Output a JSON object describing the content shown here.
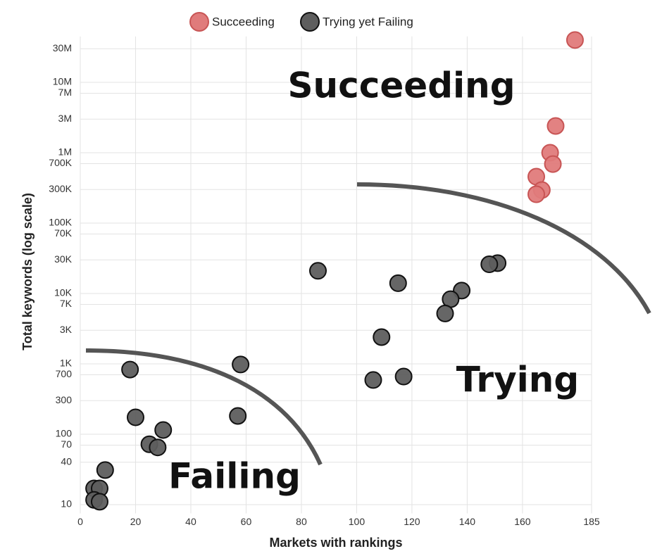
{
  "chart_data": {
    "type": "scatter",
    "x_label": "Markets with rankings",
    "y_label": "Total keywords (log scale)",
    "log_y": true,
    "grid": true,
    "legend": "top",
    "xlim": [
      0,
      185
    ],
    "xticks": [
      0,
      20,
      40,
      60,
      80,
      100,
      120,
      140,
      160,
      185
    ],
    "ylim": [
      7.5,
      45000000
    ],
    "yticks": [
      10,
      40,
      70,
      100,
      300,
      {
        "value": 700,
        "label": "700"
      },
      {
        "value": 1000,
        "label": "1K"
      },
      {
        "value": 3000,
        "label": "3K"
      },
      {
        "value": 7000,
        "label": "7K"
      },
      {
        "value": 10000,
        "label": "10K"
      },
      {
        "value": 30000,
        "label": "30K"
      },
      {
        "value": 70000,
        "label": "70K"
      },
      {
        "value": 100000,
        "label": "100K"
      },
      {
        "value": 300000,
        "label": "300K"
      },
      {
        "value": 700000,
        "label": "700K"
      },
      {
        "value": 1000000,
        "label": "1M"
      },
      {
        "value": 3000000,
        "label": "3M"
      },
      {
        "value": 7000000,
        "label": "7M"
      },
      {
        "value": 10000000,
        "label": "10M"
      },
      {
        "value": 30000000,
        "label": "30M"
      }
    ],
    "series": [
      {
        "name": "Succeeding",
        "color": "#e07b7b",
        "stroke": "#c85555",
        "x": [
          179,
          172,
          170,
          171,
          165,
          167,
          165
        ],
        "values": [
          40000000,
          2400000,
          1000000,
          690000,
          457000,
          295000,
          257000
        ]
      },
      {
        "name": "Trying yet Failing",
        "color": "#5e5e5e",
        "stroke": "#111111",
        "x": [
          86,
          115,
          151,
          148,
          138,
          134,
          132,
          109,
          106,
          117,
          18,
          58,
          57,
          20,
          30,
          25,
          28,
          9,
          5,
          7,
          5,
          7
        ],
        "values": [
          21000,
          14000,
          27000,
          26000,
          11000,
          8300,
          5200,
          2400,
          590,
          660,
          830,
          980,
          182,
          174,
          115,
          72,
          65,
          31,
          17,
          17,
          11.7,
          11
        ]
      }
    ],
    "annotations": [
      "Succeeding",
      "Trying",
      "Failing"
    ]
  }
}
